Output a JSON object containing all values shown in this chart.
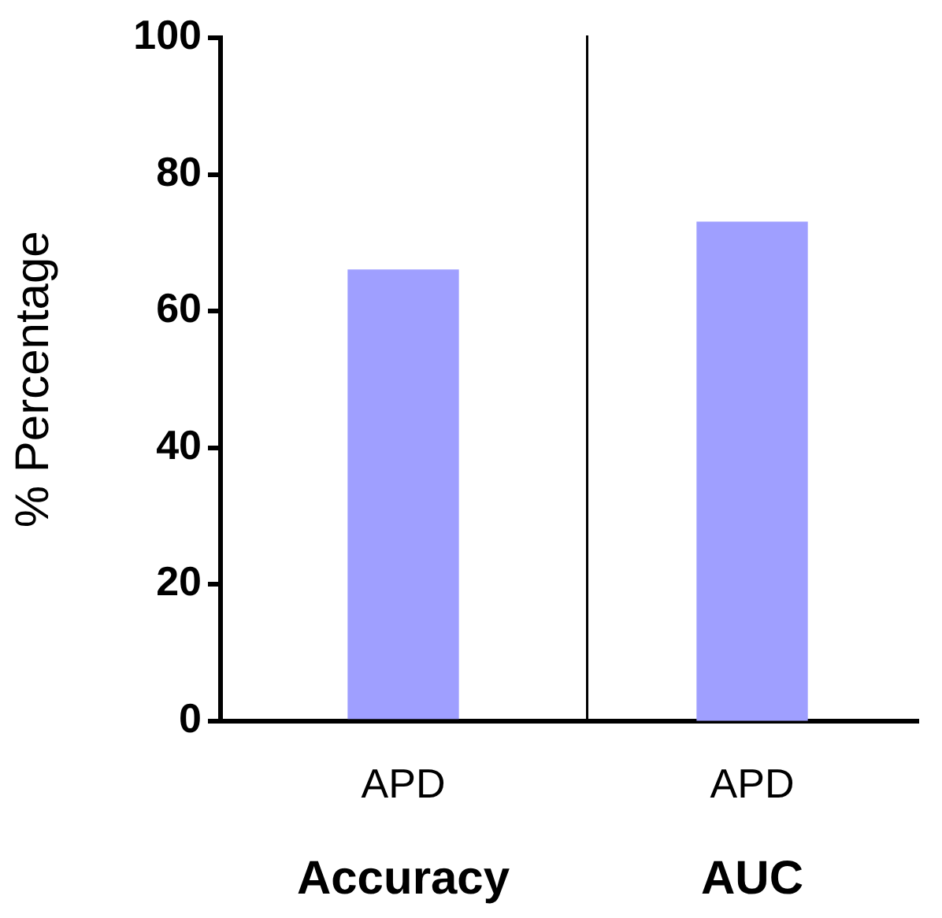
{
  "chart_data": [
    {
      "type": "bar",
      "categories": [
        "APD"
      ],
      "values": [
        66
      ],
      "color": "#9f9fff",
      "xlabel": "Accuracy",
      "ylabel": "% Percentage",
      "ylim": [
        0,
        100
      ],
      "yticks": [
        0,
        20,
        40,
        60,
        80,
        100
      ]
    },
    {
      "type": "bar",
      "categories": [
        "APD"
      ],
      "values": [
        73
      ],
      "color": "#9f9fff",
      "xlabel": "AUC",
      "ylim": [
        0,
        100
      ],
      "yticks": [
        0,
        20,
        40,
        60,
        80,
        100
      ],
      "tick_labels": "x"
    }
  ]
}
